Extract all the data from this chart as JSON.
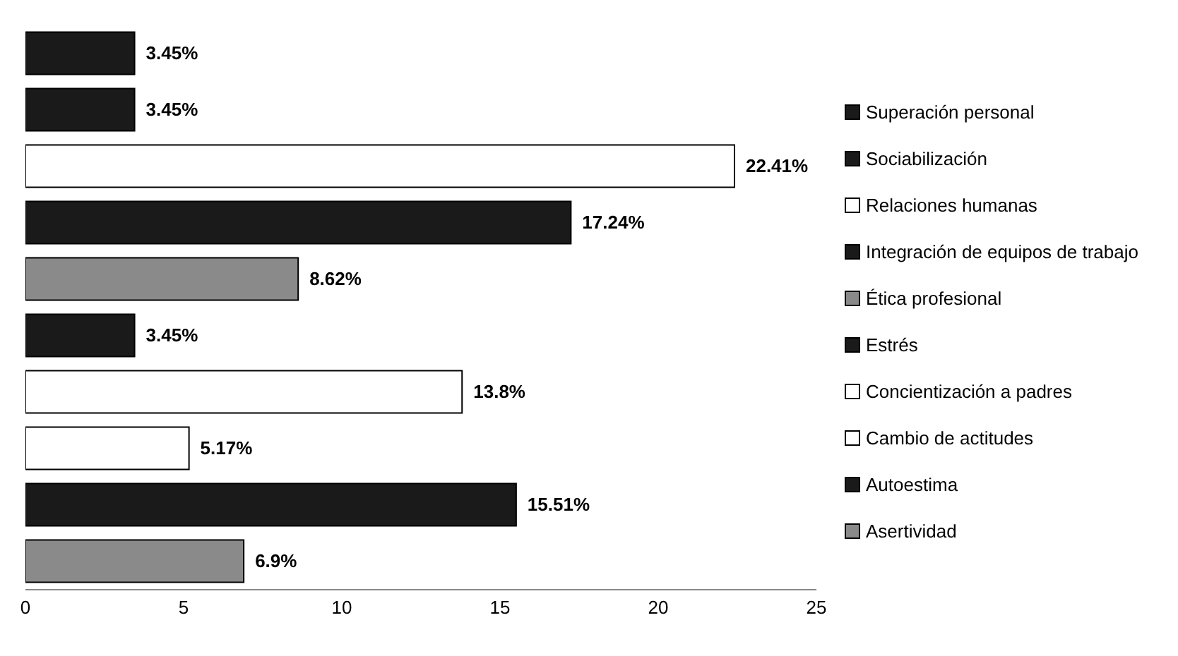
{
  "chart_data": {
    "type": "bar",
    "orientation": "horizontal",
    "stacked": true,
    "categories": [
      null,
      null,
      null,
      null,
      null,
      null,
      null,
      null,
      null,
      null
    ],
    "series": [
      {
        "name": "Superación personal",
        "color": "#1a1a1a",
        "values": [
          3.45,
          null,
          null,
          null,
          null,
          null,
          null,
          null,
          null,
          null
        ],
        "value_labels": [
          "3.45%",
          null,
          null,
          null,
          null,
          null,
          null,
          null,
          null,
          null
        ]
      },
      {
        "name": "Sociabilización",
        "color": "#1a1a1a",
        "values": [
          null,
          3.45,
          null,
          null,
          null,
          null,
          null,
          null,
          null,
          null
        ],
        "value_labels": [
          null,
          "3.45%",
          null,
          null,
          null,
          null,
          null,
          null,
          null,
          null
        ]
      },
      {
        "name": "Relaciones humanas",
        "color": "#ffffff",
        "values": [
          null,
          null,
          22.41,
          null,
          null,
          null,
          null,
          null,
          null,
          null
        ],
        "value_labels": [
          null,
          null,
          "22.41%",
          null,
          null,
          null,
          null,
          null,
          null,
          null
        ]
      },
      {
        "name": "Integración de equipos de trabajo",
        "color": "#1a1a1a",
        "values": [
          null,
          null,
          null,
          17.24,
          null,
          null,
          null,
          null,
          null,
          null
        ],
        "value_labels": [
          null,
          null,
          null,
          "17.24%",
          null,
          null,
          null,
          null,
          null,
          null
        ]
      },
      {
        "name": "Ética profesional",
        "color": "#8a8a8a",
        "values": [
          null,
          null,
          null,
          null,
          8.62,
          null,
          null,
          null,
          null,
          null
        ],
        "value_labels": [
          null,
          null,
          null,
          null,
          "8.62%",
          null,
          null,
          null,
          null,
          null
        ]
      },
      {
        "name": "Estrés",
        "color": "#1a1a1a",
        "values": [
          null,
          null,
          null,
          null,
          null,
          3.45,
          null,
          null,
          null,
          null
        ],
        "value_labels": [
          null,
          null,
          null,
          null,
          null,
          "3.45%",
          null,
          null,
          null,
          null
        ]
      },
      {
        "name": "Concientización a padres",
        "color": "#ffffff",
        "values": [
          null,
          null,
          null,
          null,
          null,
          null,
          13.8,
          null,
          null,
          null
        ],
        "value_labels": [
          null,
          null,
          null,
          null,
          null,
          null,
          "13.8%",
          null,
          null,
          null
        ]
      },
      {
        "name": "Cambio de actitudes",
        "color": "#ffffff",
        "values": [
          null,
          null,
          null,
          null,
          null,
          null,
          null,
          5.17,
          null,
          null
        ],
        "value_labels": [
          null,
          null,
          null,
          null,
          null,
          null,
          null,
          "5.17%",
          null,
          null
        ]
      },
      {
        "name": "Autoestima",
        "color": "#1a1a1a",
        "values": [
          null,
          null,
          null,
          null,
          null,
          null,
          null,
          null,
          15.51,
          null
        ],
        "value_labels": [
          null,
          null,
          null,
          null,
          null,
          null,
          null,
          null,
          "15.51%",
          null
        ]
      },
      {
        "name": "Asertividad",
        "color": "#8a8a8a",
        "values": [
          null,
          null,
          null,
          null,
          null,
          null,
          null,
          null,
          null,
          6.9
        ],
        "value_labels": [
          null,
          null,
          null,
          null,
          null,
          null,
          null,
          null,
          null,
          "6.9%"
        ]
      }
    ],
    "xlim": [
      0,
      25
    ],
    "xticks": [
      0,
      5,
      10,
      15,
      20,
      25
    ],
    "tick_labels": "x",
    "legend": "right"
  }
}
